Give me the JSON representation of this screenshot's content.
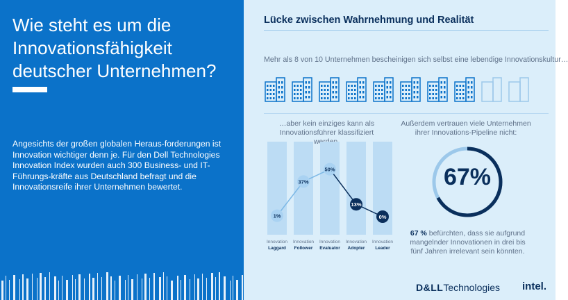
{
  "left": {
    "title": "Wie steht es um die Innovationsfähigkeit deutscher Unternehmen?",
    "intro": "Angesichts der großen globalen Heraus-forderungen ist Innovation wichtiger denn je. Für den Dell Technologies Innovation Index wurden auch 300 Business- und IT-Führungs-kräfte aus Deutschland befragt und die Innovationsreife ihrer Unternehmen bewertet."
  },
  "right": {
    "heading": "Lücke zwischen Wahrnehmung und Realität",
    "lead": "Mehr als 8 von 10 Unternehmen bescheinigen sich selbst eine lebendige Innovationskultur…",
    "buildings": {
      "total": 10,
      "filled": 8
    },
    "chart_subhead": "…aber kein einziges kann als Innovationsführer klassifiziert werden.",
    "donut_subhead": "Außerdem vertrauen viele Unternehmen ihrer Innovations-Pipeline nicht:",
    "donut_value": "67%",
    "footnote_strong": "67 %",
    "footnote_rest": " befürchten, dass sie aufgrund mangelnder Innovationen in drei bis fünf Jahren irrelevant sein könnten."
  },
  "logos": {
    "dell": "D&LL",
    "technologies": "Technologies",
    "intel": "intel."
  },
  "colors": {
    "left_bg": "#0b72c9",
    "right_bg": "#dbeefa",
    "navy": "#0a2f5c",
    "light_blue": "#9cc8ea"
  },
  "chart_data": {
    "type": "line",
    "categories": [
      "Innovation Laggard",
      "Innovation Follower",
      "Innovation Evaluator",
      "Innovation Adopter",
      "Innovation Leader"
    ],
    "cat_line1": [
      "Innovation",
      "Innovation",
      "Innovation",
      "Innovation",
      "Innovation"
    ],
    "cat_line2": [
      "Laggard",
      "Follower",
      "Evaluator",
      "Adopter",
      "Leader"
    ],
    "values": [
      1,
      37,
      50,
      13,
      0
    ],
    "labels": [
      "1%",
      "37%",
      "50%",
      "13%",
      "0%"
    ],
    "ylim": [
      0,
      60
    ]
  }
}
